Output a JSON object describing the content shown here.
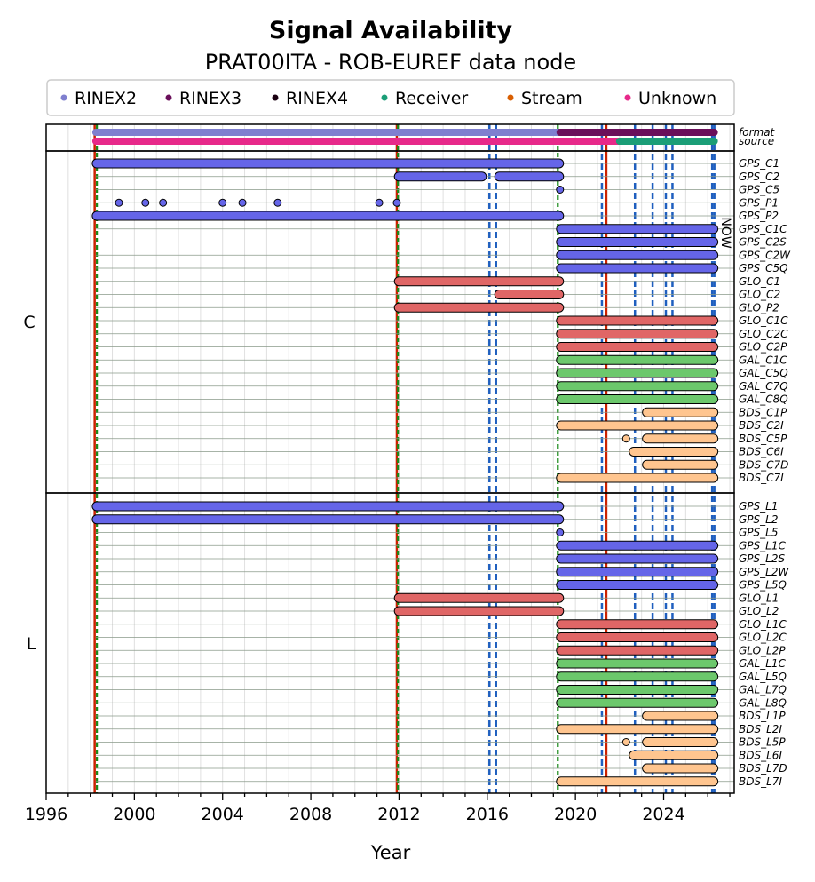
{
  "chart_data": {
    "type": "timeline",
    "title": "Signal Availability",
    "subtitle": "PRAT00ITA - ROB-EUREF data node",
    "xlabel": "Year",
    "xlim": [
      1996,
      2027.2
    ],
    "xticks": [
      1996,
      2000,
      2004,
      2008,
      2012,
      2016,
      2020,
      2024
    ],
    "now_label": "NOW",
    "now_x": 2026.25,
    "legend": [
      {
        "label": "RINEX2",
        "color": "#7f7fcf"
      },
      {
        "label": "RINEX3",
        "color": "#6a0f5a"
      },
      {
        "label": "RINEX4",
        "color": "#1a0010"
      },
      {
        "label": "Receiver",
        "color": "#1b9e77"
      },
      {
        "label": "Stream",
        "color": "#d95f02"
      },
      {
        "label": "Unknown",
        "color": "#e7298a"
      }
    ],
    "colors": {
      "GPS": "#6565e8",
      "GLO": "#e06666",
      "GAL": "#6cc86c",
      "BDS": "#ffc58f"
    },
    "event_lines": {
      "red": [
        1998.2,
        2011.9,
        2021.4
      ],
      "green": [
        1998.3,
        2011.95,
        2019.2
      ],
      "blue": [
        2016.1,
        2016.4,
        2021.2,
        2022.7,
        2023.5,
        2024.1,
        2024.4,
        2026.2,
        2026.3
      ]
    },
    "header_rows": [
      {
        "label": "format",
        "segments": [
          {
            "start": 1998.25,
            "end": 2019.3,
            "color": "#7f7fcf"
          },
          {
            "start": 2019.3,
            "end": 2026.3,
            "color": "#6a0f5a"
          }
        ]
      },
      {
        "label": "source",
        "segments": [
          {
            "start": 1998.25,
            "end": 2022.0,
            "color": "#e7298a"
          },
          {
            "start": 2022.0,
            "end": 2026.3,
            "color": "#1b9e77"
          }
        ]
      }
    ],
    "groups": [
      {
        "label": "C",
        "signals": [
          {
            "name": "GPS_C1",
            "sys": "GPS",
            "segments": [
              [
                1998.25,
                2019.3
              ]
            ]
          },
          {
            "name": "GPS_C2",
            "sys": "GPS",
            "segments": [
              [
                2011.95,
                2015.8
              ],
              [
                2016.5,
                2019.3
              ]
            ]
          },
          {
            "name": "GPS_C5",
            "sys": "GPS",
            "segments": [
              [
                2019.3,
                2019.3
              ]
            ]
          },
          {
            "name": "GPS_P1",
            "sys": "GPS",
            "segments": [
              [
                1999.3,
                1999.3
              ],
              [
                2000.5,
                2000.5
              ],
              [
                2001.3,
                2001.3
              ],
              [
                2004.0,
                2004.0
              ],
              [
                2004.9,
                2004.9
              ],
              [
                2006.5,
                2006.5
              ],
              [
                2011.1,
                2011.1
              ],
              [
                2011.9,
                2011.9
              ]
            ]
          },
          {
            "name": "GPS_P2",
            "sys": "GPS",
            "segments": [
              [
                1998.25,
                2019.3
              ]
            ]
          },
          {
            "name": "GPS_C1C",
            "sys": "GPS",
            "segments": [
              [
                2019.3,
                2026.3
              ]
            ]
          },
          {
            "name": "GPS_C2S",
            "sys": "GPS",
            "segments": [
              [
                2019.3,
                2026.3
              ]
            ]
          },
          {
            "name": "GPS_C2W",
            "sys": "GPS",
            "segments": [
              [
                2019.3,
                2026.3
              ]
            ]
          },
          {
            "name": "GPS_C5Q",
            "sys": "GPS",
            "segments": [
              [
                2019.3,
                2026.3
              ]
            ]
          },
          {
            "name": "GLO_C1",
            "sys": "GLO",
            "segments": [
              [
                2011.95,
                2019.3
              ]
            ]
          },
          {
            "name": "GLO_C2",
            "sys": "GLO",
            "segments": [
              [
                2016.5,
                2019.3
              ]
            ]
          },
          {
            "name": "GLO_P2",
            "sys": "GLO",
            "segments": [
              [
                2011.95,
                2019.3
              ]
            ]
          },
          {
            "name": "GLO_C1C",
            "sys": "GLO",
            "segments": [
              [
                2019.3,
                2026.3
              ]
            ]
          },
          {
            "name": "GLO_C2C",
            "sys": "GLO",
            "segments": [
              [
                2019.3,
                2026.3
              ]
            ]
          },
          {
            "name": "GLO_C2P",
            "sys": "GLO",
            "segments": [
              [
                2019.3,
                2026.3
              ]
            ]
          },
          {
            "name": "GAL_C1C",
            "sys": "GAL",
            "segments": [
              [
                2019.3,
                2026.3
              ]
            ]
          },
          {
            "name": "GAL_C5Q",
            "sys": "GAL",
            "segments": [
              [
                2019.3,
                2026.3
              ]
            ]
          },
          {
            "name": "GAL_C7Q",
            "sys": "GAL",
            "segments": [
              [
                2019.3,
                2026.3
              ]
            ]
          },
          {
            "name": "GAL_C8Q",
            "sys": "GAL",
            "segments": [
              [
                2019.3,
                2026.3
              ]
            ]
          },
          {
            "name": "BDS_C1P",
            "sys": "BDS",
            "segments": [
              [
                2023.2,
                2026.3
              ]
            ]
          },
          {
            "name": "BDS_C2I",
            "sys": "BDS",
            "segments": [
              [
                2019.3,
                2026.3
              ]
            ]
          },
          {
            "name": "BDS_C5P",
            "sys": "BDS",
            "segments": [
              [
                2022.3,
                2022.3
              ],
              [
                2023.2,
                2026.3
              ]
            ]
          },
          {
            "name": "BDS_C6I",
            "sys": "BDS",
            "segments": [
              [
                2022.6,
                2026.3
              ]
            ]
          },
          {
            "name": "BDS_C7D",
            "sys": "BDS",
            "segments": [
              [
                2023.2,
                2026.3
              ]
            ]
          },
          {
            "name": "BDS_C7I",
            "sys": "BDS",
            "segments": [
              [
                2019.3,
                2026.3
              ]
            ]
          }
        ]
      },
      {
        "label": "L",
        "signals": [
          {
            "name": "GPS_L1",
            "sys": "GPS",
            "segments": [
              [
                1998.25,
                2019.3
              ]
            ]
          },
          {
            "name": "GPS_L2",
            "sys": "GPS",
            "segments": [
              [
                1998.25,
                2019.3
              ]
            ]
          },
          {
            "name": "GPS_L5",
            "sys": "GPS",
            "segments": [
              [
                2019.3,
                2019.3
              ]
            ]
          },
          {
            "name": "GPS_L1C",
            "sys": "GPS",
            "segments": [
              [
                2019.3,
                2026.3
              ]
            ]
          },
          {
            "name": "GPS_L2S",
            "sys": "GPS",
            "segments": [
              [
                2019.3,
                2026.3
              ]
            ]
          },
          {
            "name": "GPS_L2W",
            "sys": "GPS",
            "segments": [
              [
                2019.3,
                2026.3
              ]
            ]
          },
          {
            "name": "GPS_L5Q",
            "sys": "GPS",
            "segments": [
              [
                2019.3,
                2026.3
              ]
            ]
          },
          {
            "name": "GLO_L1",
            "sys": "GLO",
            "segments": [
              [
                2011.95,
                2019.3
              ]
            ]
          },
          {
            "name": "GLO_L2",
            "sys": "GLO",
            "segments": [
              [
                2011.95,
                2019.3
              ]
            ]
          },
          {
            "name": "GLO_L1C",
            "sys": "GLO",
            "segments": [
              [
                2019.3,
                2026.3
              ]
            ]
          },
          {
            "name": "GLO_L2C",
            "sys": "GLO",
            "segments": [
              [
                2019.3,
                2026.3
              ]
            ]
          },
          {
            "name": "GLO_L2P",
            "sys": "GLO",
            "segments": [
              [
                2019.3,
                2026.3
              ]
            ]
          },
          {
            "name": "GAL_L1C",
            "sys": "GAL",
            "segments": [
              [
                2019.3,
                2026.3
              ]
            ]
          },
          {
            "name": "GAL_L5Q",
            "sys": "GAL",
            "segments": [
              [
                2019.3,
                2026.3
              ]
            ]
          },
          {
            "name": "GAL_L7Q",
            "sys": "GAL",
            "segments": [
              [
                2019.3,
                2026.3
              ]
            ]
          },
          {
            "name": "GAL_L8Q",
            "sys": "GAL",
            "segments": [
              [
                2019.3,
                2026.3
              ]
            ]
          },
          {
            "name": "BDS_L1P",
            "sys": "BDS",
            "segments": [
              [
                2023.2,
                2026.3
              ]
            ]
          },
          {
            "name": "BDS_L2I",
            "sys": "BDS",
            "segments": [
              [
                2019.3,
                2026.3
              ]
            ]
          },
          {
            "name": "BDS_L5P",
            "sys": "BDS",
            "segments": [
              [
                2022.3,
                2022.3
              ],
              [
                2023.2,
                2026.3
              ]
            ]
          },
          {
            "name": "BDS_L6I",
            "sys": "BDS",
            "segments": [
              [
                2022.6,
                2026.3
              ]
            ]
          },
          {
            "name": "BDS_L7D",
            "sys": "BDS",
            "segments": [
              [
                2023.2,
                2026.3
              ]
            ]
          },
          {
            "name": "BDS_L7I",
            "sys": "BDS",
            "segments": [
              [
                2019.3,
                2026.3
              ]
            ]
          }
        ]
      }
    ]
  }
}
